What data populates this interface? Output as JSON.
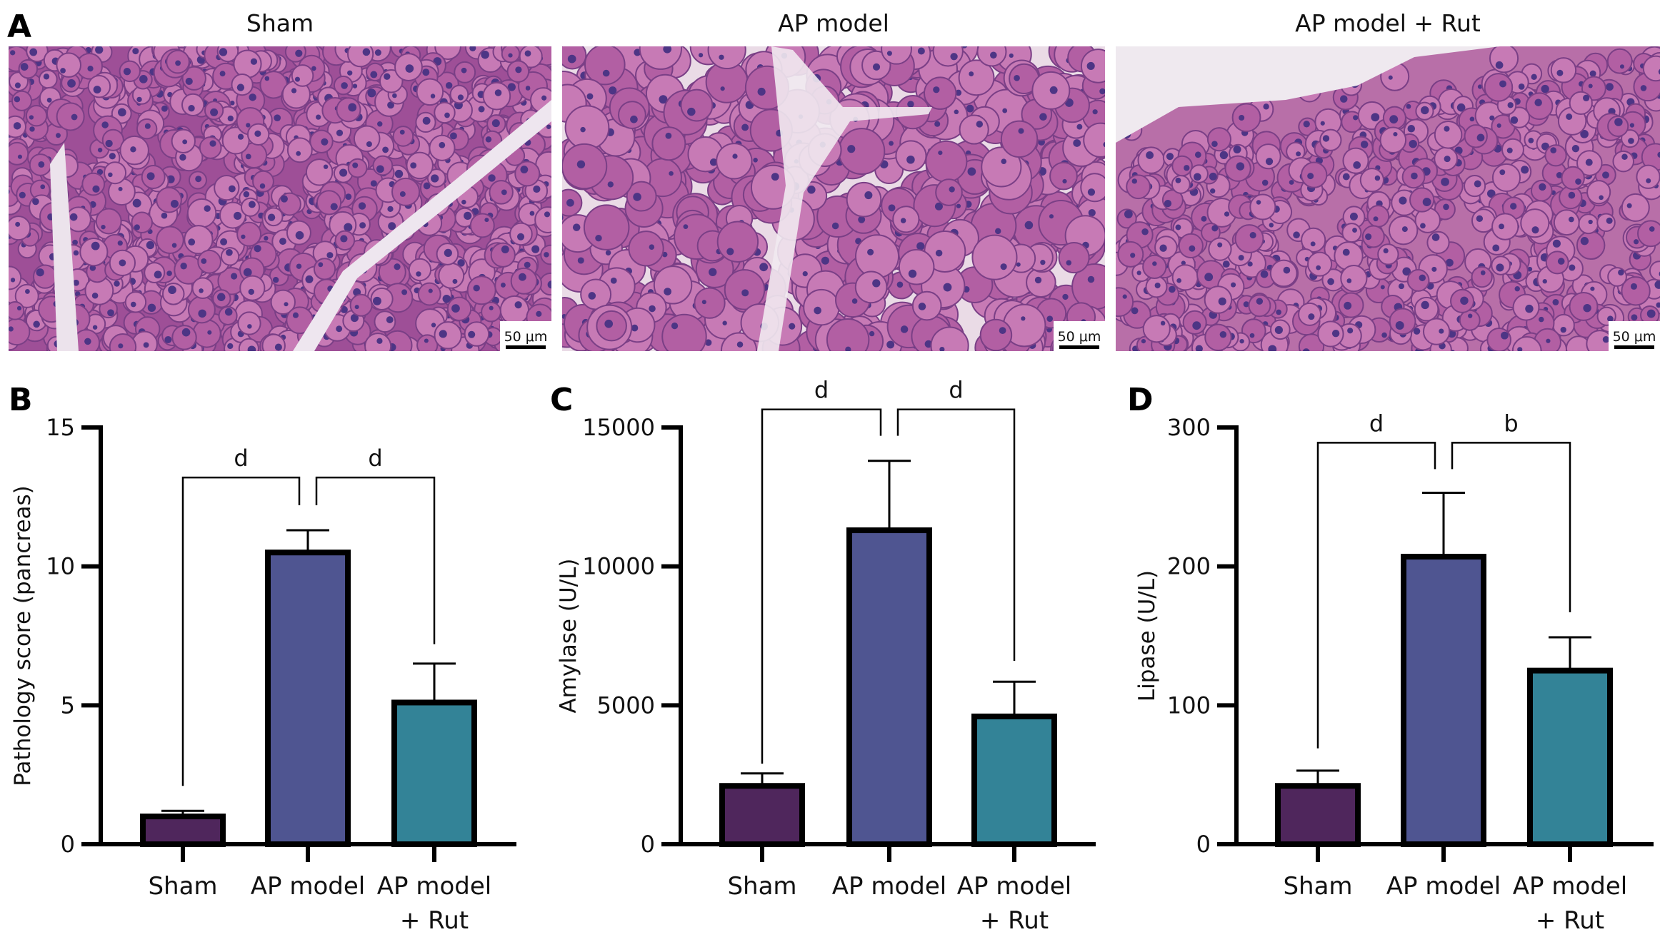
{
  "panel_a": {
    "label": "A",
    "images": [
      {
        "title": "Sham",
        "scale_bar": "50 μm"
      },
      {
        "title": "AP model",
        "scale_bar": "50 μm"
      },
      {
        "title": "AP model + Rut",
        "scale_bar": "50 μm"
      }
    ]
  },
  "chart_data": [
    {
      "panel": "B",
      "type": "bar",
      "categories": [
        "Sham",
        "AP model",
        "AP model + Rut"
      ],
      "category_lines": [
        [
          "Sham"
        ],
        [
          "AP model"
        ],
        [
          "AP model",
          "+ Rut"
        ]
      ],
      "values": [
        1.0,
        10.5,
        5.1
      ],
      "error_upper": [
        1.2,
        11.3,
        6.5
      ],
      "ylabel": "Pathology score (pancreas)",
      "ylim": [
        0,
        15
      ],
      "yticks": [
        "0",
        "5",
        "10",
        "15"
      ],
      "significance": [
        {
          "between": [
            "Sham",
            "AP model"
          ],
          "label": "d"
        },
        {
          "between": [
            "AP model",
            "AP model + Rut"
          ],
          "label": "d"
        }
      ],
      "colors": [
        "#4f265c",
        "#4f5591",
        "#338397"
      ]
    },
    {
      "panel": "C",
      "type": "bar",
      "categories": [
        "Sham",
        "AP model",
        "AP model + Rut"
      ],
      "category_lines": [
        [
          "Sham"
        ],
        [
          "AP model"
        ],
        [
          "AP model",
          "+ Rut"
        ]
      ],
      "values": [
        2100,
        11300,
        4600
      ],
      "error_upper": [
        2550,
        13800,
        5850
      ],
      "ylabel": "Amylase (U/L)",
      "ylim": [
        0,
        15000
      ],
      "yticks": [
        "0",
        "5000",
        "10000",
        "15000"
      ],
      "significance": [
        {
          "between": [
            "Sham",
            "AP model"
          ],
          "label": "d"
        },
        {
          "between": [
            "AP model",
            "AP model + Rut"
          ],
          "label": "d"
        }
      ],
      "colors": [
        "#4f265c",
        "#4f5591",
        "#338397"
      ]
    },
    {
      "panel": "D",
      "type": "bar",
      "categories": [
        "Sham",
        "AP model",
        "AP model + Rut"
      ],
      "category_lines": [
        [
          "Sham"
        ],
        [
          "AP model"
        ],
        [
          "AP model",
          "+ Rut"
        ]
      ],
      "values": [
        42,
        207,
        125
      ],
      "error_upper": [
        53,
        253,
        149
      ],
      "ylabel": "Lipase (U/L)",
      "ylim": [
        0,
        300
      ],
      "yticks": [
        "0",
        "100",
        "200",
        "300"
      ],
      "significance": [
        {
          "between": [
            "Sham",
            "AP model"
          ],
          "label": "d"
        },
        {
          "between": [
            "AP model",
            "AP model + Rut"
          ],
          "label": "b"
        }
      ],
      "colors": [
        "#4f265c",
        "#4f5591",
        "#338397"
      ]
    }
  ]
}
